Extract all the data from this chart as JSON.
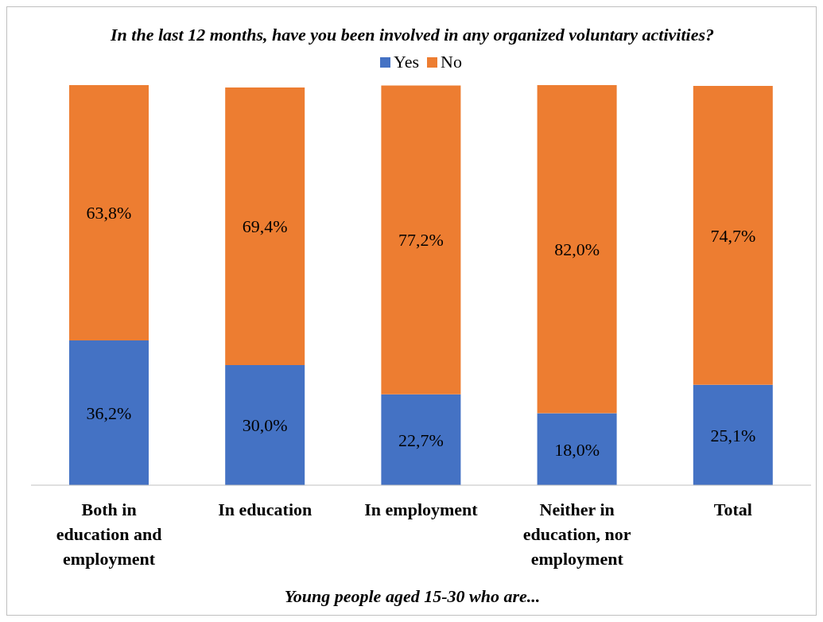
{
  "chart_data": {
    "type": "bar",
    "stacked": true,
    "title": "In the last 12 months, have you been involved in any organized voluntary activities?",
    "xlabel": "Young people aged 15-30 who are...",
    "categories": [
      "Both in education and employment",
      "In education",
      "In employment",
      "Neither in education, nor employment",
      "Total"
    ],
    "series": [
      {
        "name": "Yes",
        "color": "#4472c4",
        "values": [
          36.2,
          30.0,
          22.7,
          18.0,
          25.1
        ],
        "value_labels": [
          "36,2%",
          "30,0%",
          "22,7%",
          "18,0%",
          "25,1%"
        ]
      },
      {
        "name": "No",
        "color": "#ed7d31",
        "values": [
          63.8,
          69.4,
          77.2,
          82.0,
          74.7
        ],
        "value_labels": [
          "63,8%",
          "69,4%",
          "77,2%",
          "82,0%",
          "74,7%"
        ]
      }
    ],
    "legend": "top",
    "grid": false
  }
}
